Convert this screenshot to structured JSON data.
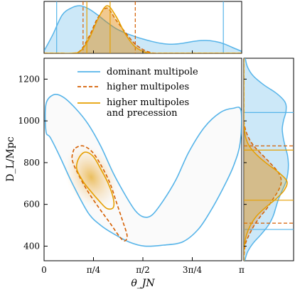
{
  "chart_data": {
    "type": "contour",
    "xlabel": "θ_JN",
    "ylabel": "D_L/Mpc",
    "xlim": [
      0,
      3.14159
    ],
    "ylim": [
      330,
      1300
    ],
    "x_ticks": [
      {
        "value": 0,
        "label": "0"
      },
      {
        "value": 0.7854,
        "label": "π/4"
      },
      {
        "value": 1.5708,
        "label": "π/2"
      },
      {
        "value": 2.3562,
        "label": "3π/4"
      },
      {
        "value": 3.14159,
        "label": "π"
      }
    ],
    "y_ticks": [
      {
        "value": 400,
        "label": "400"
      },
      {
        "value": 600,
        "label": "600"
      },
      {
        "value": 800,
        "label": "800"
      },
      {
        "value": 1000,
        "label": "1000"
      },
      {
        "value": 1200,
        "label": "1200"
      }
    ],
    "legend_position": "upper center",
    "series": [
      {
        "name": "dominant multipole",
        "color": "#56b4e9",
        "style": "solid",
        "contour": [
          [
            0.03,
            1080
          ],
          [
            0.15,
            1125
          ],
          [
            0.3,
            1115
          ],
          [
            0.5,
            1060
          ],
          [
            0.7,
            985
          ],
          [
            0.9,
            880
          ],
          [
            1.1,
            750
          ],
          [
            1.3,
            640
          ],
          [
            1.45,
            570
          ],
          [
            1.58,
            540
          ],
          [
            1.72,
            550
          ],
          [
            1.9,
            620
          ],
          [
            2.1,
            720
          ],
          [
            2.3,
            850
          ],
          [
            2.55,
            970
          ],
          [
            2.8,
            1040
          ],
          [
            3.0,
            1060
          ],
          [
            3.13,
            1050
          ],
          [
            3.12,
            900
          ],
          [
            3.02,
            790
          ],
          [
            2.85,
            680
          ],
          [
            2.65,
            570
          ],
          [
            2.45,
            480
          ],
          [
            2.2,
            420
          ],
          [
            1.9,
            405
          ],
          [
            1.6,
            400
          ],
          [
            1.35,
            420
          ],
          [
            1.1,
            460
          ],
          [
            0.9,
            500
          ],
          [
            0.7,
            560
          ],
          [
            0.45,
            700
          ],
          [
            0.25,
            830
          ],
          [
            0.1,
            920
          ],
          [
            0.03,
            950
          ]
        ],
        "marginal_x": [
          0.05,
          0.4,
          0.8,
          0.95,
          1.0,
          0.93,
          0.8,
          0.65,
          0.52,
          0.43,
          0.36,
          0.3,
          0.25,
          0.21,
          0.19,
          0.2,
          0.23,
          0.26,
          0.27,
          0.25,
          0.2,
          0.12,
          0.04
        ],
        "marginal_y": [
          0.02,
          0.08,
          0.2,
          0.37,
          0.52,
          0.62,
          0.68,
          0.74,
          0.82,
          0.9,
          0.94,
          0.95,
          0.93,
          0.88,
          0.84,
          0.82,
          0.85,
          0.9,
          0.88,
          0.7,
          0.42,
          0.2,
          0.08,
          0.03
        ],
        "x_quantiles": [
          0.2,
          2.85
        ],
        "y_quantiles": [
          480,
          1040
        ]
      },
      {
        "name": "higher multipoles",
        "color": "#d55e00",
        "style": "dashed",
        "contour": [
          [
            0.5,
            870
          ],
          [
            0.62,
            880
          ],
          [
            0.77,
            850
          ],
          [
            0.92,
            780
          ],
          [
            1.05,
            700
          ],
          [
            1.15,
            610
          ],
          [
            1.25,
            520
          ],
          [
            1.32,
            450
          ],
          [
            1.28,
            425
          ],
          [
            1.2,
            445
          ],
          [
            1.05,
            510
          ],
          [
            0.88,
            580
          ],
          [
            0.7,
            660
          ],
          [
            0.55,
            740
          ],
          [
            0.45,
            810
          ],
          [
            0.46,
            850
          ]
        ],
        "marginal_x": [
          0.0,
          0.0,
          0.0,
          0.0,
          0.05,
          0.35,
          0.75,
          0.95,
          0.7,
          0.45,
          0.22,
          0.08,
          0.01,
          0.0,
          0.0,
          0.0,
          0.0,
          0.0,
          0.0,
          0.0,
          0.0,
          0.0,
          0.0
        ],
        "marginal_y": [
          0.0,
          0.01,
          0.04,
          0.12,
          0.22,
          0.35,
          0.5,
          0.62,
          0.74,
          0.8,
          0.74,
          0.58,
          0.4,
          0.22,
          0.1,
          0.03,
          0.0,
          0.0,
          0.0,
          0.0,
          0.0,
          0.0,
          0.0,
          0.0
        ],
        "x_quantiles": [
          0.62,
          1.45
        ],
        "y_quantiles": [
          510,
          880
        ]
      },
      {
        "name": "higher multipoles and precession",
        "color": "#e69f00",
        "style": "solid",
        "contour": [
          [
            0.55,
            820
          ],
          [
            0.65,
            850
          ],
          [
            0.78,
            830
          ],
          [
            0.9,
            770
          ],
          [
            1.02,
            700
          ],
          [
            1.1,
            630
          ],
          [
            1.1,
            585
          ],
          [
            1.0,
            580
          ],
          [
            0.88,
            615
          ],
          [
            0.75,
            660
          ],
          [
            0.62,
            710
          ],
          [
            0.52,
            770
          ]
        ],
        "marginal_x": [
          0.0,
          0.0,
          0.0,
          0.0,
          0.04,
          0.3,
          0.72,
          1.0,
          0.78,
          0.42,
          0.16,
          0.04,
          0.0,
          0.0,
          0.0,
          0.0,
          0.0,
          0.0,
          0.0,
          0.0,
          0.0,
          0.0,
          0.0
        ],
        "marginal_y": [
          0.0,
          0.0,
          0.02,
          0.06,
          0.14,
          0.26,
          0.45,
          0.68,
          0.86,
          0.92,
          0.75,
          0.5,
          0.28,
          0.12,
          0.04,
          0.01,
          0.0,
          0.0,
          0.0,
          0.0,
          0.0,
          0.0,
          0.0,
          0.0
        ],
        "x_quantiles": [
          0.68,
          1.05
        ],
        "y_quantiles": [
          620,
          860
        ]
      }
    ],
    "density_peak": {
      "x": 0.75,
      "y": 730
    }
  }
}
